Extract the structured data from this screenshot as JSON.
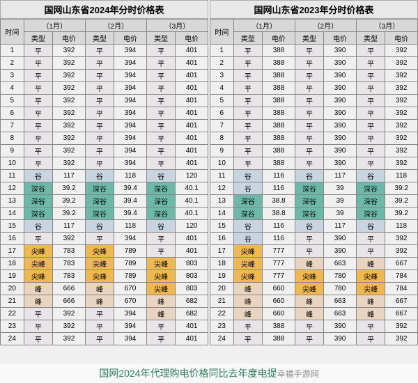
{
  "tables": [
    {
      "title": "国网山东省2024年分时价格表",
      "header_time": "时间",
      "header_type": "类型",
      "header_price": "电价",
      "months": [
        "（1月）",
        "（2月）",
        "（3月）"
      ],
      "rows": [
        {
          "hour": "1",
          "cells": [
            {
              "t": "平",
              "p": "392",
              "c": "ping"
            },
            {
              "t": "平",
              "p": "394",
              "c": "ping"
            },
            {
              "t": "平",
              "p": "401",
              "c": "ping"
            }
          ]
        },
        {
          "hour": "2",
          "cells": [
            {
              "t": "平",
              "p": "392",
              "c": "ping"
            },
            {
              "t": "平",
              "p": "394",
              "c": "ping"
            },
            {
              "t": "平",
              "p": "401",
              "c": "ping"
            }
          ]
        },
        {
          "hour": "3",
          "cells": [
            {
              "t": "平",
              "p": "392",
              "c": "ping"
            },
            {
              "t": "平",
              "p": "394",
              "c": "ping"
            },
            {
              "t": "平",
              "p": "401",
              "c": "ping"
            }
          ]
        },
        {
          "hour": "4",
          "cells": [
            {
              "t": "平",
              "p": "392",
              "c": "ping"
            },
            {
              "t": "平",
              "p": "394",
              "c": "ping"
            },
            {
              "t": "平",
              "p": "401",
              "c": "ping"
            }
          ]
        },
        {
          "hour": "5",
          "cells": [
            {
              "t": "平",
              "p": "392",
              "c": "ping"
            },
            {
              "t": "平",
              "p": "394",
              "c": "ping"
            },
            {
              "t": "平",
              "p": "401",
              "c": "ping"
            }
          ]
        },
        {
          "hour": "6",
          "cells": [
            {
              "t": "平",
              "p": "392",
              "c": "ping"
            },
            {
              "t": "平",
              "p": "394",
              "c": "ping"
            },
            {
              "t": "平",
              "p": "401",
              "c": "ping"
            }
          ]
        },
        {
          "hour": "7",
          "cells": [
            {
              "t": "平",
              "p": "392",
              "c": "ping"
            },
            {
              "t": "平",
              "p": "394",
              "c": "ping"
            },
            {
              "t": "平",
              "p": "401",
              "c": "ping"
            }
          ]
        },
        {
          "hour": "8",
          "cells": [
            {
              "t": "平",
              "p": "392",
              "c": "ping"
            },
            {
              "t": "平",
              "p": "394",
              "c": "ping"
            },
            {
              "t": "平",
              "p": "401",
              "c": "ping"
            }
          ]
        },
        {
          "hour": "9",
          "cells": [
            {
              "t": "平",
              "p": "392",
              "c": "ping"
            },
            {
              "t": "平",
              "p": "394",
              "c": "ping"
            },
            {
              "t": "平",
              "p": "401",
              "c": "ping"
            }
          ]
        },
        {
          "hour": "10",
          "cells": [
            {
              "t": "平",
              "p": "392",
              "c": "ping"
            },
            {
              "t": "平",
              "p": "394",
              "c": "ping"
            },
            {
              "t": "平",
              "p": "401",
              "c": "ping"
            }
          ]
        },
        {
          "hour": "11",
          "cells": [
            {
              "t": "谷",
              "p": "117",
              "c": "gu"
            },
            {
              "t": "谷",
              "p": "118",
              "c": "gu"
            },
            {
              "t": "谷",
              "p": "120",
              "c": "gu"
            }
          ]
        },
        {
          "hour": "12",
          "cells": [
            {
              "t": "深谷",
              "p": "39.2",
              "c": "shengu"
            },
            {
              "t": "深谷",
              "p": "39.4",
              "c": "shengu"
            },
            {
              "t": "深谷",
              "p": "40.1",
              "c": "shengu"
            }
          ]
        },
        {
          "hour": "13",
          "cells": [
            {
              "t": "深谷",
              "p": "39.2",
              "c": "shengu"
            },
            {
              "t": "深谷",
              "p": "39.4",
              "c": "shengu"
            },
            {
              "t": "深谷",
              "p": "40.1",
              "c": "shengu"
            }
          ]
        },
        {
          "hour": "14",
          "cells": [
            {
              "t": "深谷",
              "p": "39.2",
              "c": "shengu"
            },
            {
              "t": "深谷",
              "p": "39.4",
              "c": "shengu"
            },
            {
              "t": "深谷",
              "p": "40.1",
              "c": "shengu"
            }
          ]
        },
        {
          "hour": "15",
          "cells": [
            {
              "t": "谷",
              "p": "117",
              "c": "gu"
            },
            {
              "t": "谷",
              "p": "118",
              "c": "gu"
            },
            {
              "t": "谷",
              "p": "120",
              "c": "gu"
            }
          ]
        },
        {
          "hour": "16",
          "cells": [
            {
              "t": "平",
              "p": "392",
              "c": "ping"
            },
            {
              "t": "平",
              "p": "394",
              "c": "ping"
            },
            {
              "t": "平",
              "p": "401",
              "c": "ping"
            }
          ]
        },
        {
          "hour": "17",
          "cells": [
            {
              "t": "尖峰",
              "p": "783",
              "c": "jianfeng"
            },
            {
              "t": "尖峰",
              "p": "789",
              "c": "jianfeng"
            },
            {
              "t": "平",
              "p": "401",
              "c": "ping"
            }
          ]
        },
        {
          "hour": "18",
          "cells": [
            {
              "t": "尖峰",
              "p": "783",
              "c": "jianfeng"
            },
            {
              "t": "尖峰",
              "p": "789",
              "c": "jianfeng"
            },
            {
              "t": "尖峰",
              "p": "803",
              "c": "jianfeng"
            }
          ]
        },
        {
          "hour": "19",
          "cells": [
            {
              "t": "尖峰",
              "p": "783",
              "c": "jianfeng"
            },
            {
              "t": "尖峰",
              "p": "789",
              "c": "jianfeng"
            },
            {
              "t": "尖峰",
              "p": "803",
              "c": "jianfeng"
            }
          ]
        },
        {
          "hour": "20",
          "cells": [
            {
              "t": "峰",
              "p": "666",
              "c": "feng"
            },
            {
              "t": "峰",
              "p": "670",
              "c": "feng"
            },
            {
              "t": "尖峰",
              "p": "803",
              "c": "jianfeng"
            }
          ]
        },
        {
          "hour": "21",
          "cells": [
            {
              "t": "峰",
              "p": "666",
              "c": "feng"
            },
            {
              "t": "峰",
              "p": "670",
              "c": "feng"
            },
            {
              "t": "峰",
              "p": "682",
              "c": "feng"
            }
          ]
        },
        {
          "hour": "22",
          "cells": [
            {
              "t": "平",
              "p": "392",
              "c": "ping"
            },
            {
              "t": "平",
              "p": "394",
              "c": "ping"
            },
            {
              "t": "峰",
              "p": "682",
              "c": "feng"
            }
          ]
        },
        {
          "hour": "23",
          "cells": [
            {
              "t": "平",
              "p": "392",
              "c": "ping"
            },
            {
              "t": "平",
              "p": "394",
              "c": "ping"
            },
            {
              "t": "平",
              "p": "401",
              "c": "ping"
            }
          ]
        },
        {
          "hour": "24",
          "cells": [
            {
              "t": "平",
              "p": "392",
              "c": "ping"
            },
            {
              "t": "平",
              "p": "394",
              "c": "ping"
            },
            {
              "t": "平",
              "p": "401",
              "c": "ping"
            }
          ]
        }
      ]
    },
    {
      "title": "国网山东省2023年分时价格表",
      "header_time": "时间",
      "header_type": "类型",
      "header_price": "电价",
      "months": [
        "（1月）",
        "（2月）",
        "（3月）"
      ],
      "rows": [
        {
          "hour": "1",
          "cells": [
            {
              "t": "平",
              "p": "388",
              "c": "ping"
            },
            {
              "t": "平",
              "p": "390",
              "c": "ping"
            },
            {
              "t": "平",
              "p": "392",
              "c": "ping"
            }
          ]
        },
        {
          "hour": "2",
          "cells": [
            {
              "t": "平",
              "p": "388",
              "c": "ping"
            },
            {
              "t": "平",
              "p": "390",
              "c": "ping"
            },
            {
              "t": "平",
              "p": "392",
              "c": "ping"
            }
          ]
        },
        {
          "hour": "3",
          "cells": [
            {
              "t": "平",
              "p": "388",
              "c": "ping"
            },
            {
              "t": "平",
              "p": "390",
              "c": "ping"
            },
            {
              "t": "平",
              "p": "392",
              "c": "ping"
            }
          ]
        },
        {
          "hour": "4",
          "cells": [
            {
              "t": "平",
              "p": "388",
              "c": "ping"
            },
            {
              "t": "平",
              "p": "390",
              "c": "ping"
            },
            {
              "t": "平",
              "p": "392",
              "c": "ping"
            }
          ]
        },
        {
          "hour": "5",
          "cells": [
            {
              "t": "平",
              "p": "388",
              "c": "ping"
            },
            {
              "t": "平",
              "p": "390",
              "c": "ping"
            },
            {
              "t": "平",
              "p": "392",
              "c": "ping"
            }
          ]
        },
        {
          "hour": "6",
          "cells": [
            {
              "t": "平",
              "p": "388",
              "c": "ping"
            },
            {
              "t": "平",
              "p": "390",
              "c": "ping"
            },
            {
              "t": "平",
              "p": "392",
              "c": "ping"
            }
          ]
        },
        {
          "hour": "7",
          "cells": [
            {
              "t": "平",
              "p": "388",
              "c": "ping"
            },
            {
              "t": "平",
              "p": "390",
              "c": "ping"
            },
            {
              "t": "平",
              "p": "392",
              "c": "ping"
            }
          ]
        },
        {
          "hour": "8",
          "cells": [
            {
              "t": "平",
              "p": "388",
              "c": "ping"
            },
            {
              "t": "平",
              "p": "390",
              "c": "ping"
            },
            {
              "t": "平",
              "p": "392",
              "c": "ping"
            }
          ]
        },
        {
          "hour": "9",
          "cells": [
            {
              "t": "平",
              "p": "388",
              "c": "ping"
            },
            {
              "t": "平",
              "p": "390",
              "c": "ping"
            },
            {
              "t": "平",
              "p": "392",
              "c": "ping"
            }
          ]
        },
        {
          "hour": "10",
          "cells": [
            {
              "t": "平",
              "p": "388",
              "c": "ping"
            },
            {
              "t": "平",
              "p": "390",
              "c": "ping"
            },
            {
              "t": "平",
              "p": "392",
              "c": "ping"
            }
          ]
        },
        {
          "hour": "11",
          "cells": [
            {
              "t": "谷",
              "p": "116",
              "c": "gu"
            },
            {
              "t": "谷",
              "p": "117",
              "c": "gu"
            },
            {
              "t": "谷",
              "p": "118",
              "c": "gu"
            }
          ]
        },
        {
          "hour": "12",
          "cells": [
            {
              "t": "谷",
              "p": "116",
              "c": "gu"
            },
            {
              "t": "深谷",
              "p": "39",
              "c": "shengu"
            },
            {
              "t": "深谷",
              "p": "39.2",
              "c": "shengu"
            }
          ]
        },
        {
          "hour": "13",
          "cells": [
            {
              "t": "深谷",
              "p": "38.8",
              "c": "shengu"
            },
            {
              "t": "深谷",
              "p": "39",
              "c": "shengu"
            },
            {
              "t": "深谷",
              "p": "39.2",
              "c": "shengu"
            }
          ]
        },
        {
          "hour": "14",
          "cells": [
            {
              "t": "深谷",
              "p": "38.8",
              "c": "shengu"
            },
            {
              "t": "深谷",
              "p": "39",
              "c": "shengu"
            },
            {
              "t": "深谷",
              "p": "39.2",
              "c": "shengu"
            }
          ]
        },
        {
          "hour": "15",
          "cells": [
            {
              "t": "谷",
              "p": "116",
              "c": "gu"
            },
            {
              "t": "谷",
              "p": "117",
              "c": "gu"
            },
            {
              "t": "谷",
              "p": "118",
              "c": "gu"
            }
          ]
        },
        {
          "hour": "16",
          "cells": [
            {
              "t": "谷",
              "p": "116",
              "c": "gu"
            },
            {
              "t": "平",
              "p": "390",
              "c": "ping"
            },
            {
              "t": "平",
              "p": "392",
              "c": "ping"
            }
          ]
        },
        {
          "hour": "17",
          "cells": [
            {
              "t": "尖峰",
              "p": "777",
              "c": "jianfeng"
            },
            {
              "t": "平",
              "p": "390",
              "c": "ping"
            },
            {
              "t": "平",
              "p": "392",
              "c": "ping"
            }
          ]
        },
        {
          "hour": "18",
          "cells": [
            {
              "t": "尖峰",
              "p": "777",
              "c": "jianfeng"
            },
            {
              "t": "峰",
              "p": "663",
              "c": "feng"
            },
            {
              "t": "峰",
              "p": "667",
              "c": "feng"
            }
          ]
        },
        {
          "hour": "19",
          "cells": [
            {
              "t": "尖峰",
              "p": "777",
              "c": "jianfeng"
            },
            {
              "t": "尖峰",
              "p": "780",
              "c": "jianfeng"
            },
            {
              "t": "尖峰",
              "p": "784",
              "c": "jianfeng"
            }
          ]
        },
        {
          "hour": "20",
          "cells": [
            {
              "t": "峰",
              "p": "660",
              "c": "feng"
            },
            {
              "t": "尖峰",
              "p": "780",
              "c": "jianfeng"
            },
            {
              "t": "尖峰",
              "p": "784",
              "c": "jianfeng"
            }
          ]
        },
        {
          "hour": "21",
          "cells": [
            {
              "t": "峰",
              "p": "660",
              "c": "feng"
            },
            {
              "t": "峰",
              "p": "663",
              "c": "feng"
            },
            {
              "t": "峰",
              "p": "667",
              "c": "feng"
            }
          ]
        },
        {
          "hour": "22",
          "cells": [
            {
              "t": "峰",
              "p": "660",
              "c": "feng"
            },
            {
              "t": "峰",
              "p": "663",
              "c": "feng"
            },
            {
              "t": "峰",
              "p": "667",
              "c": "feng"
            }
          ]
        },
        {
          "hour": "23",
          "cells": [
            {
              "t": "平",
              "p": "388",
              "c": "ping"
            },
            {
              "t": "平",
              "p": "390",
              "c": "ping"
            },
            {
              "t": "平",
              "p": "392",
              "c": "ping"
            }
          ]
        },
        {
          "hour": "24",
          "cells": [
            {
              "t": "平",
              "p": "388",
              "c": "ping"
            },
            {
              "t": "平",
              "p": "390",
              "c": "ping"
            },
            {
              "t": "平",
              "p": "392",
              "c": "ping"
            }
          ]
        }
      ]
    }
  ],
  "footer": "国网2024年代理购电价格同比去年度电提",
  "watermark": "幸福手游网",
  "colors": {
    "ping": "#e8e4e8",
    "gu": "#c8d4e0",
    "shengu": "#6db8a8",
    "feng": "#e8d4c0",
    "jianfeng": "#f0b850",
    "footer_text": "#2a7a5a",
    "border": "#888888",
    "header_bg": "#d8d8d8"
  }
}
